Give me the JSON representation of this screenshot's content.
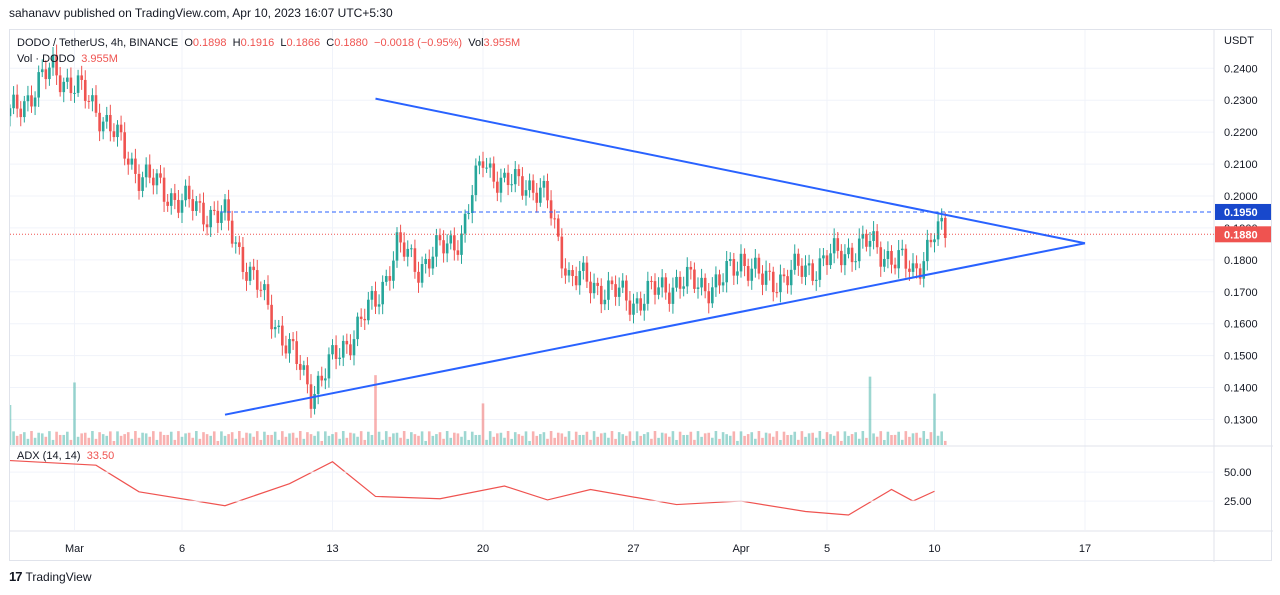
{
  "header": {
    "published_text": "sahanavv published on TradingView.com, Apr 10, 2023 16:07 UTC+5:30"
  },
  "legend": {
    "symbol": "DODO / TetherUS, 4h, BINANCE",
    "open_label": "O",
    "open": "0.1898",
    "high_label": "H",
    "high": "0.1916",
    "low_label": "L",
    "low": "0.1866",
    "close_label": "C",
    "close": "0.1880",
    "change": "−0.0018 (−0.95%)",
    "vol_label": "Vol",
    "vol": "3.955M",
    "vol_line_label": "Vol · DODO",
    "vol_line_value": "3.955M"
  },
  "adx_legend": {
    "label": "ADX (14, 14)",
    "value": "33.50"
  },
  "brand": {
    "name": "TradingView"
  },
  "colors": {
    "up": "#26a69a",
    "down": "#ef5350",
    "trend": "#2962ff",
    "grid": "#f0f3fa"
  },
  "chart_data": {
    "type": "candlestick",
    "symbol": "DODO / TetherUS",
    "interval": "4h",
    "exchange": "BINANCE",
    "currency_label": "USDT",
    "ylim": [
      0.122,
      0.252
    ],
    "price_ticks": [
      "0.2400",
      "0.2300",
      "0.2200",
      "0.2100",
      "0.2000",
      "0.1900",
      "0.1800",
      "0.1700",
      "0.1600",
      "0.1500",
      "0.1400",
      "0.1300"
    ],
    "x_ticks": [
      {
        "label": "Mar",
        "x": "Mar 1"
      },
      {
        "label": "6",
        "x": "Mar 6"
      },
      {
        "label": "13",
        "x": "Mar 13"
      },
      {
        "label": "20",
        "x": "Mar 20"
      },
      {
        "label": "27",
        "x": "Mar 27"
      },
      {
        "label": "Apr",
        "x": "Apr 1"
      },
      {
        "label": "5",
        "x": "Apr 5"
      },
      {
        "label": "10",
        "x": "Apr 10"
      },
      {
        "label": "17",
        "x": "Apr 17"
      }
    ],
    "level_line": {
      "value": 0.195,
      "label": "0.1950",
      "style": "dashed"
    },
    "last_price": {
      "value": 0.188,
      "label": "0.1880"
    },
    "triangle": {
      "upper": [
        {
          "x": "Mar 15",
          "y": 0.2305
        },
        {
          "x": "Apr 17",
          "y": 0.1852
        }
      ],
      "lower": [
        {
          "x": "Mar 8",
          "y": 0.1315
        },
        {
          "x": "Apr 17",
          "y": 0.1852
        }
      ]
    },
    "price_path": [
      {
        "x": "Feb 26",
        "y": 0.225
      },
      {
        "x": "Feb 28",
        "y": 0.24
      },
      {
        "x": "Mar 2",
        "y": 0.228
      },
      {
        "x": "Mar 4",
        "y": 0.207
      },
      {
        "x": "Mar 6",
        "y": 0.198
      },
      {
        "x": "Mar 8",
        "y": 0.193
      },
      {
        "x": "Mar 9",
        "y": 0.178
      },
      {
        "x": "Mar 11",
        "y": 0.152
      },
      {
        "x": "Mar 12",
        "y": 0.139
      },
      {
        "x": "Mar 13",
        "y": 0.148
      },
      {
        "x": "Mar 15",
        "y": 0.167
      },
      {
        "x": "Mar 16",
        "y": 0.184
      },
      {
        "x": "Mar 17",
        "y": 0.178
      },
      {
        "x": "Mar 19",
        "y": 0.188
      },
      {
        "x": "Mar 20",
        "y": 0.212
      },
      {
        "x": "Mar 21",
        "y": 0.203
      },
      {
        "x": "Mar 22",
        "y": 0.205
      },
      {
        "x": "Mar 23",
        "y": 0.198
      },
      {
        "x": "Mar 24",
        "y": 0.175
      },
      {
        "x": "Mar 26",
        "y": 0.17
      },
      {
        "x": "Mar 27",
        "y": 0.167
      },
      {
        "x": "Mar 29",
        "y": 0.173
      },
      {
        "x": "Mar 31",
        "y": 0.172
      },
      {
        "x": "Apr 1",
        "y": 0.181
      },
      {
        "x": "Apr 2",
        "y": 0.173
      },
      {
        "x": "Apr 4",
        "y": 0.177
      },
      {
        "x": "Apr 6",
        "y": 0.183
      },
      {
        "x": "Apr 7",
        "y": 0.185
      },
      {
        "x": "Apr 8",
        "y": 0.181
      },
      {
        "x": "Apr 9",
        "y": 0.176
      },
      {
        "x": "Apr 10",
        "y": 0.188
      }
    ],
    "volume_spikes": [
      {
        "x": "Feb 26",
        "value": "high"
      },
      {
        "x": "Mar 1",
        "value": "high"
      },
      {
        "x": "Mar 15",
        "value": "high"
      },
      {
        "x": "Mar 20",
        "value": "high"
      },
      {
        "x": "Apr 7",
        "value": "high"
      },
      {
        "x": "Apr 10",
        "value": "high"
      }
    ],
    "adx": {
      "name": "ADX (14, 14)",
      "ticks": [
        "50.00",
        "25.00"
      ],
      "ylim": [
        0,
        70
      ],
      "points": [
        {
          "x": "Feb 26",
          "y": 60
        },
        {
          "x": "Mar 2",
          "y": 56
        },
        {
          "x": "Mar 4",
          "y": 33
        },
        {
          "x": "Mar 8",
          "y": 21
        },
        {
          "x": "Mar 11",
          "y": 40
        },
        {
          "x": "Mar 13",
          "y": 59
        },
        {
          "x": "Mar 15",
          "y": 29
        },
        {
          "x": "Mar 18",
          "y": 27
        },
        {
          "x": "Mar 21",
          "y": 38
        },
        {
          "x": "Mar 23",
          "y": 26
        },
        {
          "x": "Mar 25",
          "y": 35
        },
        {
          "x": "Mar 29",
          "y": 22
        },
        {
          "x": "Apr 1",
          "y": 25
        },
        {
          "x": "Apr 4",
          "y": 16
        },
        {
          "x": "Apr 6",
          "y": 13
        },
        {
          "x": "Apr 8",
          "y": 35
        },
        {
          "x": "Apr 9",
          "y": 25
        },
        {
          "x": "Apr 10",
          "y": 33.5
        }
      ]
    }
  }
}
